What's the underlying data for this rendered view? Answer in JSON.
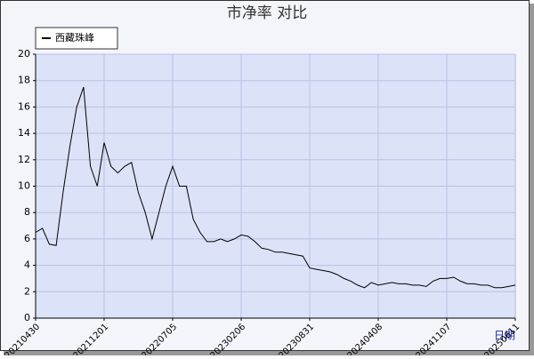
{
  "chart_data": {
    "type": "line",
    "title": "市净率  对比",
    "x_label": "日期",
    "categories": [
      "20210430",
      null,
      null,
      null,
      null,
      null,
      null,
      null,
      null,
      null,
      "20211201",
      null,
      null,
      null,
      null,
      null,
      null,
      null,
      null,
      null,
      "20220705",
      null,
      null,
      null,
      null,
      null,
      null,
      null,
      null,
      null,
      "20230206",
      null,
      null,
      null,
      null,
      null,
      null,
      null,
      null,
      null,
      "20230831",
      null,
      null,
      null,
      null,
      null,
      null,
      null,
      null,
      null,
      "20240408",
      null,
      null,
      null,
      null,
      null,
      null,
      null,
      null,
      null,
      "20241107",
      null,
      null,
      null,
      null,
      null,
      null,
      null,
      null,
      null,
      "20250611"
    ],
    "series": [
      {
        "name": "西藏珠峰",
        "color": "#000000",
        "values": [
          6.5,
          6.8,
          5.6,
          5.5,
          9.5,
          13,
          16,
          17.5,
          11.5,
          10,
          13.3,
          11.5,
          11,
          11.5,
          11.8,
          9.5,
          8,
          6,
          8,
          10,
          11.5,
          10,
          10,
          7.5,
          6.5,
          5.8,
          5.8,
          6,
          5.8,
          6,
          6.3,
          6.2,
          5.8,
          5.3,
          5.2,
          5,
          5,
          4.9,
          4.8,
          4.7,
          3.8,
          3.7,
          3.6,
          3.5,
          3.3,
          3,
          2.8,
          2.5,
          2.3,
          2.7,
          2.5,
          2.6,
          2.7,
          2.6,
          2.6,
          2.5,
          2.5,
          2.4,
          2.8,
          3,
          3,
          3.1,
          2.8,
          2.6,
          2.6,
          2.5,
          2.5,
          2.3,
          2.3,
          2.4,
          2.5
        ]
      }
    ],
    "ylim": [
      0,
      20
    ],
    "yticks": [
      0,
      2,
      4,
      6,
      8,
      10,
      12,
      14,
      16,
      18,
      20
    ],
    "grid": true,
    "legend": "top-left"
  }
}
